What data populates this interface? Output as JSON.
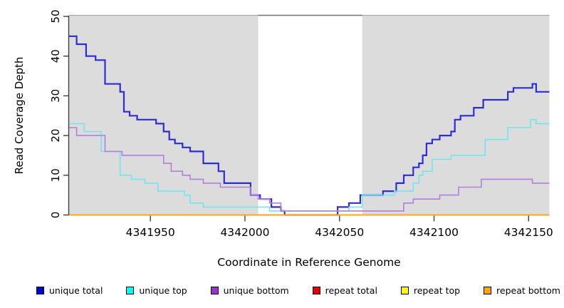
{
  "chart_data": {
    "type": "line",
    "subtype": "step-after",
    "title": "",
    "xlabel": "Coordinate in Reference Genome",
    "ylabel": "Read Coverage Depth",
    "xlim": [
      4341907,
      4342161
    ],
    "ylim": [
      0,
      50
    ],
    "x_ticks": [
      4341950,
      4342000,
      4342050,
      4342100,
      4342150
    ],
    "y_ticks": [
      0,
      10,
      20,
      30,
      40,
      50
    ],
    "grid": false,
    "legend_position": "bottom",
    "shade_color": "#dcdcdc",
    "shaded_regions": [
      {
        "from": 4341907,
        "to": 4342007
      },
      {
        "from": 4342062,
        "to": 4342161
      }
    ],
    "series": [
      {
        "name": "unique total",
        "legend_color": "#0000cc",
        "line_color": "#2d2dd8",
        "line_width": 2.2,
        "points": [
          [
            4341907,
            45
          ],
          [
            4341911,
            43
          ],
          [
            4341916,
            40
          ],
          [
            4341921,
            39
          ],
          [
            4341926,
            33
          ],
          [
            4341934,
            31
          ],
          [
            4341936,
            26
          ],
          [
            4341939,
            25
          ],
          [
            4341943,
            24
          ],
          [
            4341953,
            23
          ],
          [
            4341957,
            21
          ],
          [
            4341960,
            19
          ],
          [
            4341963,
            18
          ],
          [
            4341967,
            17
          ],
          [
            4341971,
            16
          ],
          [
            4341978,
            13
          ],
          [
            4341986,
            11
          ],
          [
            4341989,
            8
          ],
          [
            4342003,
            5
          ],
          [
            4342008,
            4
          ],
          [
            4342014,
            2
          ],
          [
            4342019,
            1
          ],
          [
            4342021,
            0
          ],
          [
            4342049,
            2
          ],
          [
            4342055,
            3
          ],
          [
            4342061,
            5
          ],
          [
            4342073,
            6
          ],
          [
            4342080,
            8
          ],
          [
            4342084,
            10
          ],
          [
            4342089,
            12
          ],
          [
            4342092,
            13
          ],
          [
            4342094,
            15
          ],
          [
            4342096,
            18
          ],
          [
            4342099,
            19
          ],
          [
            4342103,
            20
          ],
          [
            4342109,
            21
          ],
          [
            4342111,
            24
          ],
          [
            4342114,
            25
          ],
          [
            4342121,
            27
          ],
          [
            4342126,
            29
          ],
          [
            4342139,
            31
          ],
          [
            4342142,
            32
          ],
          [
            4342152,
            33
          ],
          [
            4342154,
            31
          ]
        ]
      },
      {
        "name": "unique top",
        "legend_color": "#00ffff",
        "line_color": "#72e5ef",
        "line_width": 1.6,
        "points": [
          [
            4341907,
            23
          ],
          [
            4341915,
            21
          ],
          [
            4341924,
            16
          ],
          [
            4341934,
            10
          ],
          [
            4341940,
            9
          ],
          [
            4341947,
            8
          ],
          [
            4341954,
            6
          ],
          [
            4341968,
            5
          ],
          [
            4341971,
            3
          ],
          [
            4341978,
            2
          ],
          [
            4342013,
            1
          ],
          [
            4342055,
            2
          ],
          [
            4342062,
            5
          ],
          [
            4342079,
            6
          ],
          [
            4342089,
            8
          ],
          [
            4342092,
            10
          ],
          [
            4342094,
            11
          ],
          [
            4342099,
            14
          ],
          [
            4342109,
            15
          ],
          [
            4342127,
            19
          ],
          [
            4342139,
            22
          ],
          [
            4342151,
            24
          ],
          [
            4342154,
            23
          ]
        ]
      },
      {
        "name": "unique bottom",
        "legend_color": "#9933cc",
        "line_color": "#b47fdb",
        "line_width": 1.6,
        "points": [
          [
            4341907,
            22
          ],
          [
            4341911,
            20
          ],
          [
            4341926,
            16
          ],
          [
            4341935,
            15
          ],
          [
            4341957,
            13
          ],
          [
            4341961,
            11
          ],
          [
            4341967,
            10
          ],
          [
            4341971,
            9
          ],
          [
            4341978,
            8
          ],
          [
            4341987,
            7
          ],
          [
            4342003,
            5
          ],
          [
            4342007,
            4
          ],
          [
            4342013,
            3
          ],
          [
            4342019,
            1
          ],
          [
            4342084,
            3
          ],
          [
            4342089,
            4
          ],
          [
            4342103,
            5
          ],
          [
            4342113,
            7
          ],
          [
            4342125,
            9
          ],
          [
            4342152,
            8
          ]
        ]
      },
      {
        "name": "repeat total",
        "legend_color": "#e60000",
        "line_color": "#cc0000",
        "line_width": 1.6,
        "points": [
          [
            4341907,
            0
          ]
        ]
      },
      {
        "name": "repeat top",
        "legend_color": "#ffff00",
        "line_color": "#ffff00",
        "line_width": 1.6,
        "points": [
          [
            4341907,
            0
          ]
        ]
      },
      {
        "name": "repeat bottom",
        "legend_color": "#ffa500",
        "line_color": "#ffa41c",
        "line_width": 2,
        "points": [
          [
            4341907,
            0
          ]
        ]
      }
    ],
    "frame": {
      "top_border_color": "#a8a8a8",
      "gap_border_color": "#777777",
      "axis_color": "#404040"
    }
  }
}
